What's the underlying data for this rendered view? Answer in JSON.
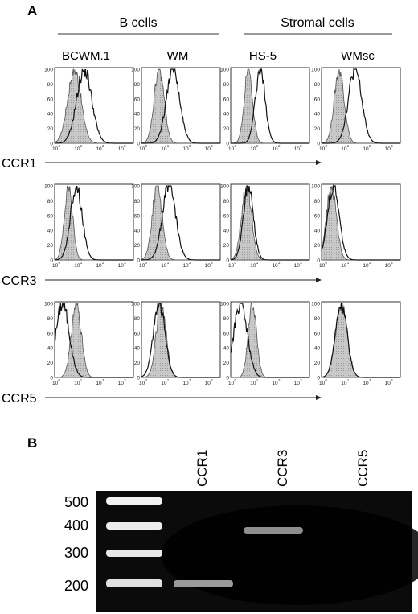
{
  "panel_a": {
    "label": "A",
    "groups": [
      {
        "name": "B cells",
        "columns": [
          0,
          1
        ]
      },
      {
        "name": "Stromal cells",
        "columns": [
          2,
          3
        ]
      }
    ],
    "columns": [
      "BCWM.1",
      "WM",
      "HS-5",
      "WMsc"
    ],
    "y_ticks": [
      "0",
      "20",
      "40",
      "60",
      "80",
      "100"
    ],
    "x_ticks": [
      "10",
      "10",
      "10",
      "10"
    ],
    "x_tick_exponents": [
      "0",
      "1",
      "2",
      "3"
    ],
    "rows": [
      {
        "marker": "CCR1",
        "plots": [
          {
            "iso": [
              1.0,
              0.8
            ],
            "stain": [
              1.5,
              0.9
            ]
          },
          {
            "iso": [
              0.9,
              0.6
            ],
            "stain": [
              1.6,
              0.8
            ]
          },
          {
            "iso": [
              0.9,
              0.5
            ],
            "stain": [
              1.5,
              0.6
            ]
          },
          {
            "iso": [
              0.9,
              0.6
            ],
            "stain": [
              1.7,
              0.8
            ]
          }
        ]
      },
      {
        "marker": "CCR3",
        "plots": [
          {
            "iso": [
              0.7,
              0.5
            ],
            "stain": [
              1.1,
              0.7
            ]
          },
          {
            "iso": [
              0.8,
              0.6
            ],
            "stain": [
              1.4,
              0.8
            ]
          },
          {
            "iso": [
              0.8,
              0.6
            ],
            "stain": [
              0.9,
              0.6
            ]
          },
          {
            "iso": [
              0.5,
              0.6
            ],
            "stain": [
              0.6,
              0.7
            ]
          }
        ]
      },
      {
        "marker": "CCR5",
        "plots": [
          {
            "iso": [
              1.1,
              0.6
            ],
            "stain": [
              0.4,
              0.8
            ]
          },
          {
            "iso": [
              1.0,
              0.6
            ],
            "stain": [
              0.9,
              0.7
            ]
          },
          {
            "iso": [
              1.1,
              0.5
            ],
            "stain": [
              0.5,
              0.8
            ]
          },
          {
            "iso": [
              1.0,
              0.7
            ],
            "stain": [
              1.0,
              0.7
            ]
          }
        ]
      }
    ]
  },
  "panel_b": {
    "label": "B",
    "lanes": [
      "CCR1",
      "CCR3",
      "CCR5"
    ],
    "ladder": [
      "500",
      "400",
      "300",
      "200"
    ],
    "bands": [
      {
        "lane": "CCR1",
        "size": "200",
        "intensity": 0.6
      },
      {
        "lane": "CCR3",
        "size": "370",
        "intensity": 0.55
      }
    ]
  },
  "colors": {
    "isotype_fill": "#c8c8c8",
    "gel_background": "#0a0a0a",
    "band": "#e6e6e6"
  }
}
